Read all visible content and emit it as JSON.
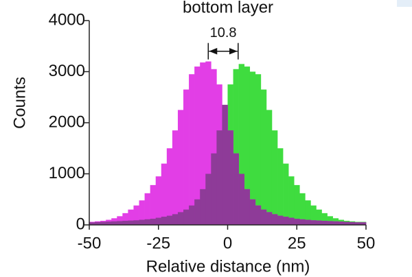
{
  "chart_data": {
    "type": "histogram",
    "title": "bottom layer",
    "x_label": "Relative distance (nm)",
    "y_label": "Counts",
    "bins": [
      -50,
      -48,
      -46,
      -44,
      -42,
      -40,
      -38,
      -36,
      -34,
      -32,
      -30,
      -28,
      -26,
      -24,
      -22,
      -20,
      -18,
      -16,
      -14,
      -12,
      -10,
      -8,
      -6,
      -4,
      -2,
      0,
      2,
      4,
      6,
      8,
      10,
      12,
      14,
      16,
      18,
      20,
      22,
      24,
      26,
      28,
      30,
      32,
      34,
      36,
      38,
      40,
      42,
      44,
      46,
      48,
      50
    ],
    "series": [
      {
        "color": "#e23ee6",
        "values": [
          60,
          70,
          80,
          100,
          130,
          170,
          230,
          300,
          380,
          480,
          620,
          780,
          950,
          1200,
          1500,
          1850,
          2250,
          2650,
          2950,
          3100,
          3180,
          3200,
          3050,
          2750,
          2350,
          1850,
          1400,
          1000,
          700,
          500,
          380,
          300,
          250,
          210,
          180,
          160,
          140,
          120,
          110,
          100,
          90,
          85,
          80,
          75,
          70,
          65,
          60,
          55,
          50,
          50
        ]
      },
      {
        "color": "#3fdc3f",
        "values": [
          50,
          55,
          60,
          65,
          70,
          75,
          80,
          85,
          90,
          100,
          110,
          120,
          140,
          160,
          180,
          210,
          250,
          300,
          380,
          500,
          700,
          1000,
          1400,
          1850,
          2350,
          2750,
          3050,
          3150,
          3100,
          3000,
          2950,
          2650,
          2250,
          1850,
          1500,
          1200,
          950,
          780,
          620,
          480,
          380,
          300,
          230,
          170,
          130,
          100,
          80,
          70,
          60,
          60
        ]
      }
    ],
    "overlap_color": "#8e3b98",
    "annotation": {
      "text": "10.8",
      "x_start": -7,
      "x_end": 3.8,
      "y": 3400
    },
    "xlim": [
      -50,
      50
    ],
    "xticks": [
      -50,
      -25,
      0,
      25,
      50
    ],
    "ylim": [
      0,
      4000
    ],
    "yticks": [
      0,
      1000,
      2000,
      3000,
      4000
    ]
  }
}
